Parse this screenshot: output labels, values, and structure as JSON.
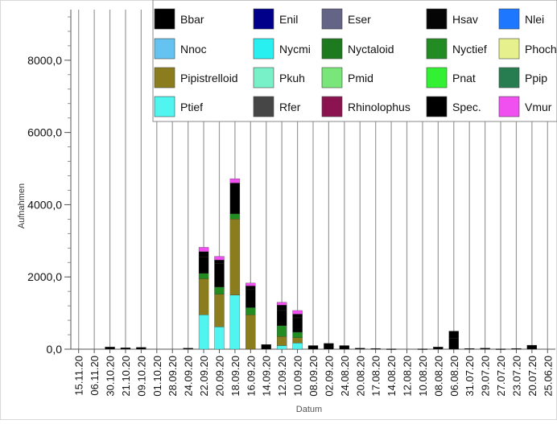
{
  "chart_data": {
    "type": "bar",
    "stacked": true,
    "ylabel": "Aufnahmen",
    "xlabel": "Datum",
    "ylim": [
      0,
      9400
    ],
    "yticks": [
      "0,0",
      "2000,0",
      "4000,0",
      "6000,0",
      "8000,0"
    ],
    "ytick_values": [
      0,
      2000,
      4000,
      6000,
      8000
    ],
    "grid": "vertical",
    "legend_position": "top-right",
    "categories": [
      "15.11.20",
      "06.11.20",
      "30.10.20",
      "21.10.20",
      "09.10.20",
      "01.10.20",
      "28.09.20",
      "24.09.20",
      "22.09.20",
      "20.09.20",
      "18.09.20",
      "16.09.20",
      "14.09.20",
      "12.09.20",
      "10.09.20",
      "08.09.20",
      "02.09.20",
      "24.08.20",
      "20.08.20",
      "17.08.20",
      "14.08.20",
      "12.08.20",
      "10.08.20",
      "08.08.20",
      "06.08.20",
      "31.07.20",
      "29.07.20",
      "27.07.20",
      "23.07.20",
      "20.07.20",
      "25.06.20"
    ],
    "legend": [
      {
        "name": "Bbar",
        "color": "#000000"
      },
      {
        "name": "Enil",
        "color": "#00008b"
      },
      {
        "name": "Eser",
        "color": "#646487"
      },
      {
        "name": "Hsav",
        "color": "#050505"
      },
      {
        "name": "Nlei",
        "color": "#1e78ff"
      },
      {
        "name": "Nnoc",
        "color": "#64c3f0"
      },
      {
        "name": "Nycmi",
        "color": "#28f0f0"
      },
      {
        "name": "Nyctaloid",
        "color": "#1e7a1e"
      },
      {
        "name": "Nyctief",
        "color": "#228b22"
      },
      {
        "name": "Phoch",
        "color": "#e6f08c"
      },
      {
        "name": "Pipistrelloid",
        "color": "#8b7d1e"
      },
      {
        "name": "Pkuh",
        "color": "#78f0c8"
      },
      {
        "name": "Pmid",
        "color": "#78e678"
      },
      {
        "name": "Pnat",
        "color": "#32f032"
      },
      {
        "name": "Ppip",
        "color": "#287d50"
      },
      {
        "name": "Ptief",
        "color": "#50f5f0"
      },
      {
        "name": "Rfer",
        "color": "#464646"
      },
      {
        "name": "Rhinolophus",
        "color": "#8b1450"
      },
      {
        "name": "Spec.",
        "color": "#000000"
      },
      {
        "name": "Vmur",
        "color": "#f050f0"
      }
    ],
    "series": [
      {
        "name": "Ptief",
        "values": [
          0,
          0,
          0,
          0,
          0,
          0,
          0,
          0,
          950,
          620,
          1500,
          0,
          0,
          100,
          170,
          0,
          0,
          0,
          0,
          0,
          0,
          0,
          0,
          0,
          0,
          0,
          0,
          0,
          0,
          0,
          0
        ]
      },
      {
        "name": "Pipistrelloid",
        "values": [
          0,
          0,
          0,
          0,
          0,
          0,
          0,
          0,
          1000,
          900,
          2100,
          950,
          0,
          250,
          150,
          0,
          0,
          0,
          0,
          0,
          0,
          0,
          0,
          0,
          0,
          0,
          0,
          0,
          0,
          0,
          0
        ]
      },
      {
        "name": "Nyctief",
        "values": [
          0,
          0,
          0,
          0,
          0,
          0,
          0,
          0,
          150,
          200,
          150,
          200,
          0,
          300,
          150,
          0,
          0,
          0,
          0,
          0,
          0,
          0,
          0,
          0,
          0,
          0,
          0,
          0,
          0,
          0,
          0
        ]
      },
      {
        "name": "Bbar",
        "values": [
          0,
          0,
          60,
          40,
          50,
          0,
          0,
          30,
          450,
          650,
          850,
          500,
          130,
          420,
          400,
          100,
          160,
          100,
          30,
          20,
          10,
          0,
          10,
          60,
          300,
          20,
          30,
          10,
          20,
          110,
          0
        ]
      },
      {
        "name": "Spec.",
        "values": [
          0,
          0,
          0,
          0,
          0,
          0,
          0,
          0,
          150,
          100,
          0,
          100,
          0,
          150,
          100,
          0,
          0,
          0,
          0,
          0,
          0,
          0,
          0,
          0,
          200,
          0,
          0,
          0,
          0,
          0,
          0
        ]
      },
      {
        "name": "Vmur",
        "values": [
          0,
          0,
          0,
          0,
          0,
          0,
          0,
          0,
          120,
          100,
          120,
          80,
          0,
          80,
          100,
          0,
          0,
          0,
          0,
          0,
          0,
          0,
          0,
          0,
          0,
          0,
          0,
          0,
          0,
          0,
          0
        ]
      }
    ]
  }
}
